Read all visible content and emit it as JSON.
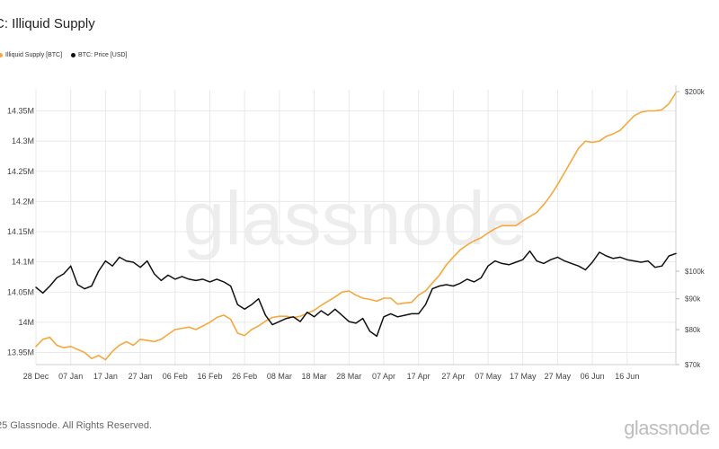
{
  "header": {
    "title": "C: Illiquid Supply"
  },
  "footer": {
    "copyright": "25 Glassnode. All Rights Reserved.",
    "logo": "glassnode"
  },
  "watermark": "glassnode",
  "colors": {
    "supply": "#f5a83c",
    "price": "#111111",
    "grid": "#e9e9e9"
  },
  "chart_data": {
    "type": "line",
    "title": "C: Illiquid Supply",
    "x_tick_labels": [
      "28 Dec",
      "07 Jan",
      "17 Jan",
      "27 Jan",
      "06 Feb",
      "16 Feb",
      "26 Feb",
      "08 Mar",
      "18 Mar",
      "28 Mar",
      "07 Apr",
      "17 Apr",
      "27 Apr",
      "07 May",
      "17 May",
      "27 May",
      "06 Jun",
      "16 Jun"
    ],
    "left_axis": {
      "ticks": [
        13950000,
        14000000,
        14050000,
        14100000,
        14150000,
        14200000,
        14250000,
        14300000,
        14350000
      ],
      "tick_labels": [
        "13.95M",
        "14M",
        "14.05M",
        "14.1M",
        "14.15M",
        "14.2M",
        "14.25M",
        "14.3M",
        "14.35M"
      ],
      "ylim": [
        13930000,
        14385000
      ]
    },
    "right_axis": {
      "scale": "log",
      "ticks": [
        70000,
        80000,
        90000,
        100000,
        200000
      ],
      "tick_labels": [
        "$70k",
        "$80k",
        "$90k",
        "$100k",
        "$200k"
      ]
    },
    "grid": true,
    "legend_position": "top-left",
    "series": [
      {
        "name": "Illiquid Supply [BTC]",
        "axis": "left",
        "color": "#f5a83c",
        "day": [
          0,
          2,
          4,
          6,
          8,
          10,
          12,
          14,
          16,
          18,
          20,
          22,
          24,
          26,
          28,
          30,
          32,
          34,
          36,
          38,
          40,
          42,
          44,
          46,
          48,
          50,
          52,
          54,
          56,
          58,
          60,
          62,
          64,
          66,
          68,
          70,
          72,
          74,
          76,
          78,
          80,
          82,
          84,
          86,
          88,
          90,
          92,
          94,
          96,
          98,
          100,
          102,
          104,
          106,
          108,
          110,
          112,
          114,
          116,
          118,
          120,
          122,
          124,
          126,
          128,
          130,
          132,
          134,
          136,
          138,
          140,
          142,
          144,
          146,
          148,
          150,
          152,
          154,
          156,
          158,
          160,
          162,
          164,
          166,
          168,
          170,
          172,
          174,
          176,
          178,
          180,
          182,
          184
        ],
        "values": [
          13960000,
          13972000,
          13975000,
          13962000,
          13958000,
          13960000,
          13955000,
          13950000,
          13940000,
          13945000,
          13938000,
          13952000,
          13962000,
          13968000,
          13962000,
          13972000,
          13970000,
          13968000,
          13972000,
          13980000,
          13988000,
          13990000,
          13992000,
          13988000,
          13994000,
          14000000,
          14008000,
          14012000,
          14005000,
          13982000,
          13978000,
          13988000,
          13994000,
          14002000,
          14008000,
          14010000,
          14010000,
          14008000,
          14010000,
          14015000,
          14020000,
          14028000,
          14035000,
          14042000,
          14050000,
          14052000,
          14045000,
          14040000,
          14038000,
          14035000,
          14040000,
          14040000,
          14030000,
          14032000,
          14033000,
          14045000,
          14052000,
          14065000,
          14078000,
          14095000,
          14108000,
          14120000,
          14128000,
          14135000,
          14140000,
          14148000,
          14155000,
          14160000,
          14160000,
          14160000,
          14168000,
          14175000,
          14182000,
          14195000,
          14210000,
          14228000,
          14248000,
          14268000,
          14288000,
          14300000,
          14298000,
          14300000,
          14308000,
          14312000,
          14318000,
          14330000,
          14342000,
          14348000,
          14350000,
          14350000,
          14352000,
          14362000,
          14380000
        ]
      },
      {
        "name": "BTC: Price [USD]",
        "axis": "right",
        "color": "#111111",
        "day": [
          0,
          2,
          4,
          6,
          8,
          10,
          12,
          14,
          16,
          18,
          20,
          22,
          24,
          26,
          28,
          30,
          32,
          34,
          36,
          38,
          40,
          42,
          44,
          46,
          48,
          50,
          52,
          54,
          56,
          58,
          60,
          62,
          64,
          66,
          68,
          70,
          72,
          74,
          76,
          78,
          80,
          82,
          84,
          86,
          88,
          90,
          92,
          94,
          96,
          98,
          100,
          102,
          104,
          106,
          108,
          110,
          112,
          114,
          116,
          118,
          120,
          122,
          124,
          126,
          128,
          130,
          132,
          134,
          136,
          138,
          140,
          142,
          144,
          146,
          148,
          150,
          152,
          154,
          156,
          158,
          160,
          162,
          164,
          166,
          168,
          170,
          172,
          174,
          176,
          178,
          180,
          182,
          184
        ],
        "values": [
          94000,
          92000,
          94500,
          97500,
          99000,
          102000,
          95000,
          93500,
          94500,
          100000,
          104000,
          102000,
          105500,
          104000,
          103500,
          101500,
          104000,
          99000,
          96500,
          98500,
          97000,
          98000,
          97000,
          96500,
          97000,
          96000,
          97000,
          96000,
          94500,
          88000,
          86500,
          88000,
          90000,
          84500,
          81500,
          82500,
          83500,
          84000,
          82500,
          85500,
          84000,
          86000,
          84500,
          86500,
          84500,
          82500,
          82000,
          83500,
          79500,
          78000,
          84000,
          85000,
          84000,
          84500,
          85000,
          85000,
          88000,
          93500,
          94500,
          95000,
          94500,
          95500,
          97000,
          96000,
          97500,
          102000,
          104000,
          103000,
          102500,
          103500,
          104500,
          108000,
          104000,
          103000,
          104500,
          105500,
          104000,
          103000,
          102000,
          100500,
          103500,
          107500,
          106000,
          105000,
          105500,
          104500,
          104000,
          103500,
          104000,
          101500,
          102000,
          106000,
          107000
        ]
      }
    ]
  }
}
